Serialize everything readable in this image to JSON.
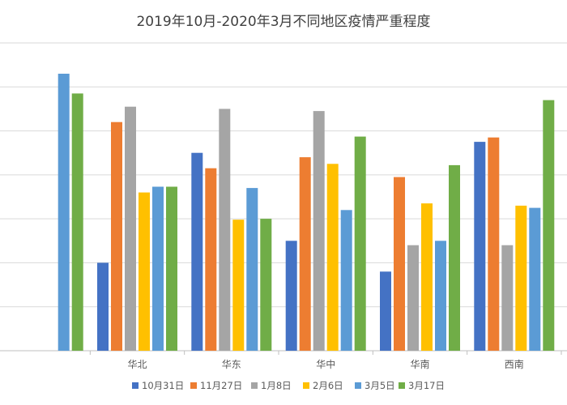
{
  "chart_data": {
    "type": "bar",
    "title": "2019年10月-2020年3月不同地区疫情严重程度",
    "xlabel": "",
    "ylabel": "",
    "ylim": [
      0,
      7
    ],
    "y_ticks_shown": false,
    "grid": true,
    "legend_position": "bottom",
    "categories": [
      "",
      "华北",
      "华东",
      "华中",
      "华南",
      "西南"
    ],
    "series": [
      {
        "name": "10月31日",
        "color": "#4472C4",
        "values": [
          null,
          2.0,
          4.5,
          2.5,
          1.8,
          4.75
        ]
      },
      {
        "name": "11月27日",
        "color": "#ED7D31",
        "values": [
          null,
          5.2,
          4.15,
          4.4,
          3.95,
          4.85
        ]
      },
      {
        "name": "1月8日",
        "color": "#A5A5A5",
        "values": [
          null,
          5.55,
          5.5,
          5.45,
          2.4,
          2.4
        ]
      },
      {
        "name": "2月6日",
        "color": "#FFC000",
        "values": [
          null,
          3.6,
          2.98,
          4.25,
          3.35,
          3.3
        ]
      },
      {
        "name": "3月5日",
        "color": "#5B9BD5",
        "values": [
          6.3,
          3.73,
          3.7,
          3.2,
          2.5,
          3.25
        ]
      },
      {
        "name": "3月17日",
        "color": "#70AD47",
        "values": [
          5.85,
          3.73,
          3.0,
          4.87,
          4.22,
          5.7
        ]
      }
    ]
  }
}
